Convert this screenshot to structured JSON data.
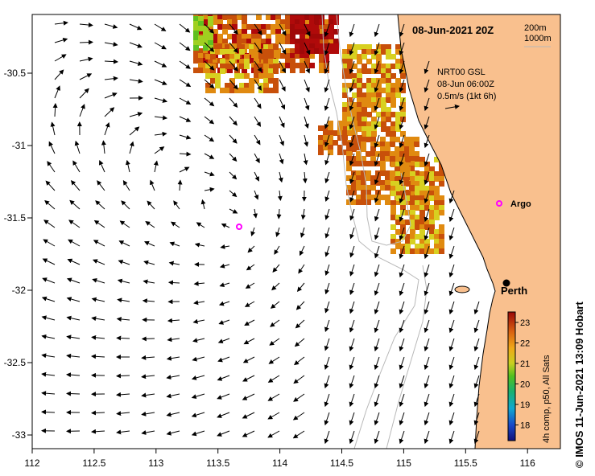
{
  "map": {
    "title": "08-Jun-2021 20Z",
    "isobaths": [
      "200m",
      "1000m"
    ],
    "current_source": "NRT00 GSL",
    "current_time": "08-Jun 06:00Z",
    "scale_label": "0.5m/s (1kt 6h)",
    "x_ticks": [
      "112",
      "112.5",
      "113",
      "113.5",
      "114",
      "114.5",
      "115",
      "115.5",
      "116"
    ],
    "y_ticks": [
      "-30.5",
      "-31",
      "-31.5",
      "-32",
      "-32.5",
      "-33"
    ],
    "places": {
      "argo": "Argo",
      "city": "Perth"
    },
    "colorbar": {
      "ticks": [
        "23",
        "22",
        "21",
        "20",
        "19",
        "18"
      ],
      "label": "4h comp, p50, All Sats"
    },
    "credit": "© IMOS 11-Jun-2021 13:09 Hobart",
    "colors": {
      "land": "#f9c08e",
      "sst_warm": "#c8500a",
      "sst_hot": "#b00a0a",
      "sst_mid": "#e08a10",
      "sst_cool": "#d8d020",
      "argo": "#ff00ff"
    }
  }
}
